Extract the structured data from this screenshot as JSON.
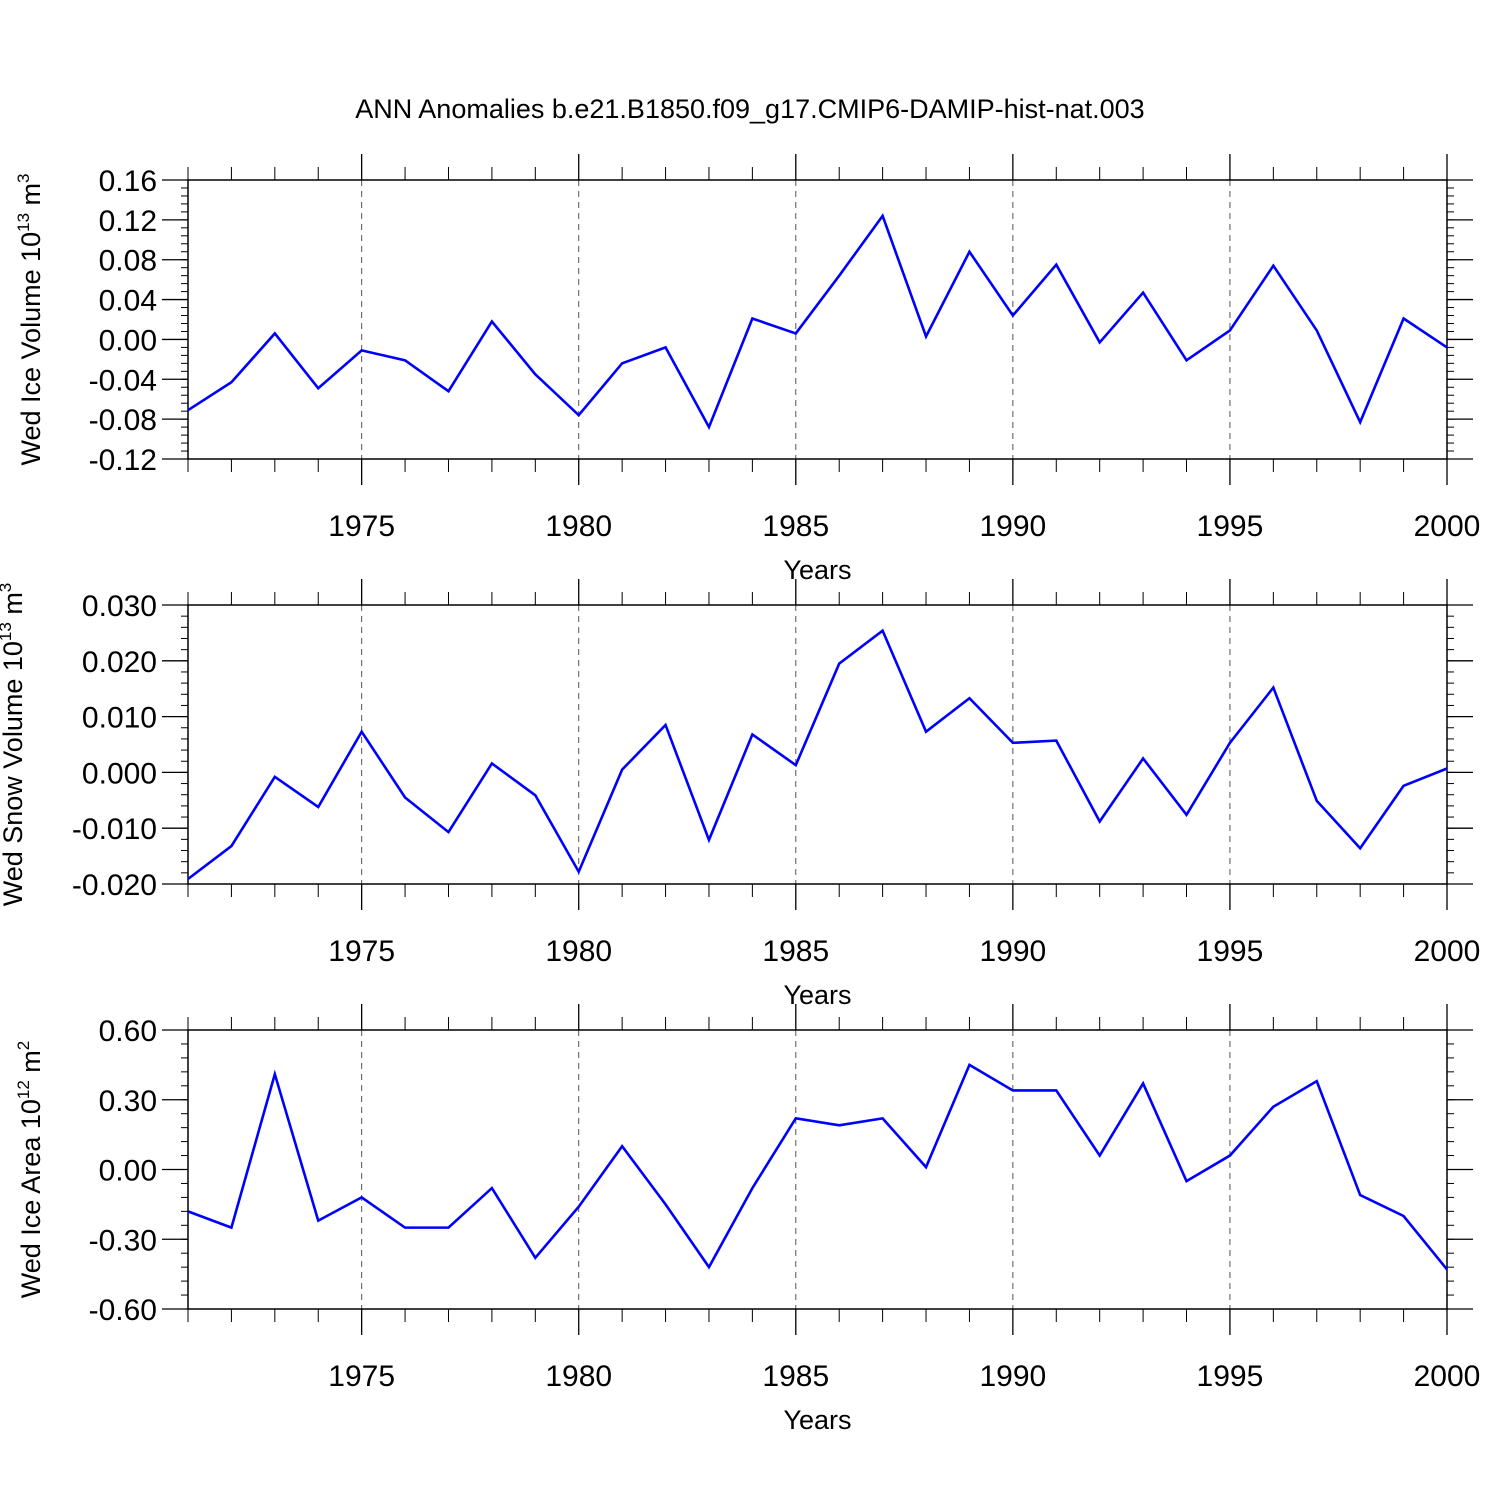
{
  "chart_data": {
    "title": "ANN Anomalies b.e21.B1850.f09_g17.CMIP6-DAMIP-hist-nat.003",
    "line_color": "#0000ff",
    "grid": "dashed vertical lines at labeled years",
    "panels": [
      {
        "type": "line",
        "ylabel": {
          "text": "Wed Ice Volume 10",
          "exponent": "13",
          "unit": " m",
          "unit_exponent": "3"
        },
        "xlabel": "Years",
        "xlim": [
          1971,
          2000
        ],
        "ylim": [
          -0.12,
          0.16
        ],
        "yticks": [
          -0.12,
          -0.08,
          -0.04,
          0.0,
          0.04,
          0.08,
          0.12,
          0.16
        ],
        "ytick_labels": [
          "-0.12",
          "-0.08",
          "-0.04",
          "0.00",
          "0.04",
          "0.08",
          "0.12",
          "0.16"
        ],
        "xticks": [
          1975,
          1980,
          1985,
          1990,
          1995,
          2000
        ],
        "xtick_labels": [
          "1975",
          "1980",
          "1985",
          "1990",
          "1995",
          "2000"
        ],
        "x": [
          1971,
          1972,
          1973,
          1974,
          1975,
          1976,
          1977,
          1978,
          1979,
          1980,
          1981,
          1982,
          1983,
          1984,
          1985,
          1986,
          1987,
          1988,
          1989,
          1990,
          1991,
          1992,
          1993,
          1994,
          1995,
          1996,
          1997,
          1998,
          1999,
          2000
        ],
        "y": [
          -0.071,
          -0.043,
          0.006,
          -0.049,
          -0.011,
          -0.021,
          -0.052,
          0.018,
          -0.035,
          -0.076,
          -0.024,
          -0.008,
          -0.088,
          0.021,
          0.006,
          0.064,
          0.124,
          0.003,
          0.088,
          0.024,
          0.075,
          -0.003,
          0.047,
          -0.021,
          0.009,
          0.074,
          0.009,
          -0.083,
          0.021,
          -0.008
        ]
      },
      {
        "type": "line",
        "ylabel": {
          "text": "Wed Snow Volume 10",
          "exponent": "13",
          "unit": " m",
          "unit_exponent": "3"
        },
        "xlabel": "Years",
        "xlim": [
          1971,
          2000
        ],
        "ylim": [
          -0.02,
          0.03
        ],
        "yticks": [
          -0.02,
          -0.01,
          0.0,
          0.01,
          0.02,
          0.03
        ],
        "ytick_labels": [
          "-0.020",
          "-0.010",
          "0.000",
          "0.010",
          "0.020",
          "0.030"
        ],
        "xticks": [
          1975,
          1980,
          1985,
          1990,
          1995,
          2000
        ],
        "xtick_labels": [
          "1975",
          "1980",
          "1985",
          "1990",
          "1995",
          "2000"
        ],
        "x": [
          1971,
          1972,
          1973,
          1974,
          1975,
          1976,
          1977,
          1978,
          1979,
          1980,
          1981,
          1982,
          1983,
          1984,
          1985,
          1986,
          1987,
          1988,
          1989,
          1990,
          1991,
          1992,
          1993,
          1994,
          1995,
          1996,
          1997,
          1998,
          1999,
          2000
        ],
        "y": [
          -0.0191,
          -0.0132,
          -0.0008,
          -0.0062,
          0.0073,
          -0.0045,
          -0.0107,
          0.0016,
          -0.0041,
          -0.0178,
          0.0005,
          0.0085,
          -0.0121,
          0.0068,
          0.0013,
          0.0195,
          0.0254,
          0.0073,
          0.0133,
          0.0053,
          0.0057,
          -0.0088,
          0.0025,
          -0.0076,
          0.0053,
          0.0152,
          -0.0051,
          -0.0136,
          -0.0024,
          0.0007
        ]
      },
      {
        "type": "line",
        "ylabel": {
          "text": "Wed Ice Area 10",
          "exponent": "12",
          "unit": " m",
          "unit_exponent": "2"
        },
        "xlabel": "Years",
        "xlim": [
          1971,
          2000
        ],
        "ylim": [
          -0.6,
          0.6
        ],
        "yticks": [
          -0.6,
          -0.3,
          0.0,
          0.3,
          0.6
        ],
        "ytick_labels": [
          "-0.60",
          "-0.30",
          "0.00",
          "0.30",
          "0.60"
        ],
        "xticks": [
          1975,
          1980,
          1985,
          1990,
          1995,
          2000
        ],
        "xtick_labels": [
          "1975",
          "1980",
          "1985",
          "1990",
          "1995",
          "2000"
        ],
        "x": [
          1971,
          1972,
          1973,
          1974,
          1975,
          1976,
          1977,
          1978,
          1979,
          1980,
          1981,
          1982,
          1983,
          1984,
          1985,
          1986,
          1987,
          1988,
          1989,
          1990,
          1991,
          1992,
          1993,
          1994,
          1995,
          1996,
          1997,
          1998,
          1999,
          2000
        ],
        "y": [
          -0.18,
          -0.25,
          0.41,
          -0.22,
          -0.12,
          -0.25,
          -0.25,
          -0.08,
          -0.38,
          -0.16,
          0.1,
          -0.15,
          -0.42,
          -0.08,
          0.22,
          0.19,
          0.22,
          0.01,
          0.45,
          0.34,
          0.34,
          0.06,
          0.37,
          -0.05,
          0.06,
          0.27,
          0.38,
          -0.11,
          -0.2,
          -0.43
        ]
      }
    ]
  }
}
